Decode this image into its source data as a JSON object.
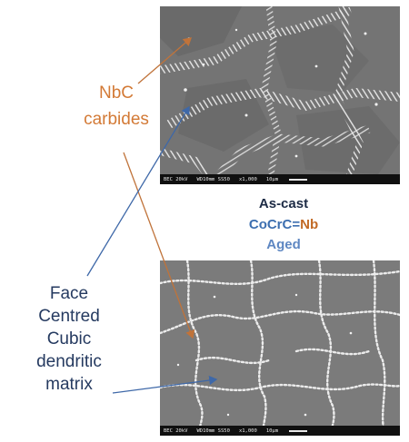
{
  "micrographs": {
    "top": {
      "scalebar": {
        "mode": "BEC 20kV",
        "wd": "WD10mm SS50",
        "mag": "x1,000",
        "scale": "10μm"
      }
    },
    "bottom": {
      "scalebar": {
        "mode": "BEC 20kV",
        "wd": "WD10mm SS50",
        "mag": "x1,000",
        "scale": "10μm"
      }
    }
  },
  "conditions": {
    "as_cast": "As-cast",
    "alloy_prefix": "CoCrC=",
    "alloy_nb": "Nb",
    "aged": "Aged"
  },
  "labels": {
    "nbc_line1": "NbC",
    "nbc_line2": "carbides",
    "fcc_line1": "Face",
    "fcc_line2": "Centred",
    "fcc_line3": "Cubic",
    "fcc_line4": "dendritic",
    "fcc_line5": "matrix"
  },
  "colors": {
    "nbc_label": "#d37a36",
    "fcc_label": "#253a60",
    "arrow_nbc": "#c0733a",
    "arrow_fcc": "#3e68a8"
  }
}
